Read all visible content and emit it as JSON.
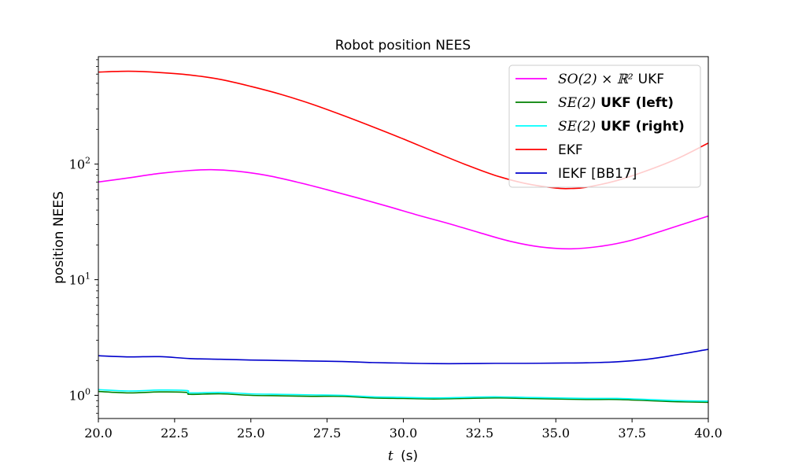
{
  "chart_data": {
    "type": "line",
    "title": "Robot position NEES",
    "xlabel_var": "t",
    "xlabel_unit": "(s)",
    "ylabel": "position NEES",
    "xlim": [
      20,
      40
    ],
    "ylim": [
      0.63,
      850
    ],
    "yscale": "log",
    "x_ticks": [
      "20.0",
      "22.5",
      "25.0",
      "27.5",
      "30.0",
      "32.5",
      "35.0",
      "37.5",
      "40.0"
    ],
    "x_tick_values": [
      20,
      22.5,
      25,
      27.5,
      30,
      32.5,
      35,
      37.5,
      40
    ],
    "y_ticks": [
      {
        "value": 1,
        "base": "10",
        "exp": "0"
      },
      {
        "value": 10,
        "base": "10",
        "exp": "1"
      },
      {
        "value": 100,
        "base": "10",
        "exp": "2"
      }
    ],
    "grid": false,
    "legend_position": "top-right",
    "series": [
      {
        "name": "SO(2) × ℝ² UKF",
        "legend_math": "SO(2) × ℝ²",
        "legend_text": "UKF",
        "color": "#ff00ff",
        "x": [
          20,
          21,
          22,
          23,
          23.7,
          24.5,
          25.5,
          26.5,
          27.5,
          28.5,
          29.5,
          30.5,
          31.5,
          32.5,
          33.5,
          34.5,
          35.5,
          36.5,
          37.5,
          38.5,
          39.3,
          40
        ],
        "y": [
          70,
          76,
          83,
          88,
          89.5,
          87,
          80,
          70,
          60,
          51,
          43,
          36,
          30.5,
          25.5,
          21.5,
          19.2,
          18.5,
          19.5,
          22,
          26.5,
          31,
          35.5
        ]
      },
      {
        "name": "SE(2) UKF (left)",
        "legend_math": "SE(2)",
        "legend_text": "UKF (left)",
        "color": "#008000",
        "x": [
          20,
          21,
          22,
          22.9,
          23,
          24,
          25,
          26,
          27,
          28,
          29,
          30,
          31,
          32,
          33,
          34,
          35,
          36,
          37,
          38,
          39,
          40
        ],
        "y": [
          1.08,
          1.05,
          1.07,
          1.06,
          1.02,
          1.03,
          1.0,
          0.99,
          0.98,
          0.98,
          0.95,
          0.94,
          0.93,
          0.94,
          0.95,
          0.94,
          0.93,
          0.92,
          0.92,
          0.9,
          0.88,
          0.87
        ]
      },
      {
        "name": "SE(2) UKF (right)",
        "legend_math": "SE(2)",
        "legend_text": "UKF (right)",
        "color": "#00ffff",
        "x": [
          20,
          21,
          22,
          22.9,
          23,
          24,
          25,
          26,
          27,
          28,
          29,
          30,
          31,
          32,
          33,
          34,
          35,
          36,
          37,
          38,
          39,
          40
        ],
        "y": [
          1.12,
          1.09,
          1.11,
          1.1,
          1.05,
          1.06,
          1.03,
          1.02,
          1.01,
          1.0,
          0.97,
          0.96,
          0.95,
          0.96,
          0.97,
          0.96,
          0.95,
          0.94,
          0.94,
          0.92,
          0.9,
          0.89
        ]
      },
      {
        "name": "EKF",
        "legend_text": "EKF",
        "color": "#ff0000",
        "x": [
          20,
          21,
          22,
          23,
          24,
          25,
          26,
          27,
          28,
          29,
          30,
          31,
          32,
          33,
          34,
          35,
          35.5,
          36,
          37,
          38,
          39,
          40
        ],
        "y": [
          625,
          635,
          620,
          590,
          540,
          470,
          400,
          330,
          265,
          210,
          165,
          128,
          100,
          80,
          68,
          62,
          61.5,
          63,
          72,
          88,
          112,
          152
        ]
      },
      {
        "name": "IEKF [BB17]",
        "legend_text": "IEKF [BB17]",
        "color": "#0000cc",
        "x": [
          20,
          21,
          22,
          23,
          24,
          25,
          26,
          27,
          28,
          29,
          30,
          31,
          32,
          33,
          34,
          35,
          36,
          37,
          38,
          39,
          40
        ],
        "y": [
          2.2,
          2.15,
          2.16,
          2.08,
          2.05,
          2.02,
          2.0,
          1.98,
          1.96,
          1.92,
          1.9,
          1.88,
          1.88,
          1.89,
          1.89,
          1.9,
          1.91,
          1.95,
          2.05,
          2.25,
          2.5
        ]
      }
    ]
  }
}
